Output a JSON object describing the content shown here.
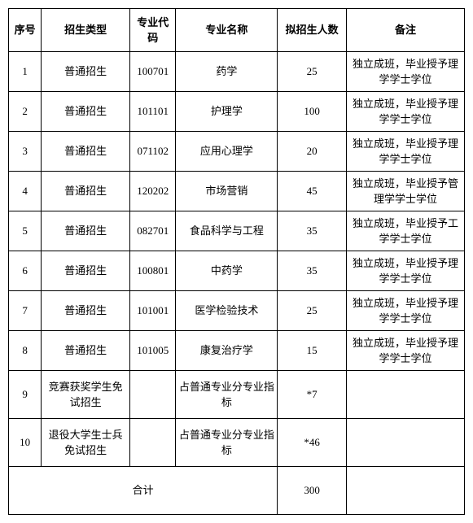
{
  "headers": {
    "seq": "序号",
    "type": "招生类型",
    "code": "专业代码",
    "name": "专业名称",
    "count": "拟招生人数",
    "note": "备注"
  },
  "rows": [
    {
      "seq": "1",
      "type": "普通招生",
      "code": "100701",
      "name": "药学",
      "count": "25",
      "note": "独立成班，毕业授予理学学士学位"
    },
    {
      "seq": "2",
      "type": "普通招生",
      "code": "101101",
      "name": "护理学",
      "count": "100",
      "note": "独立成班，毕业授予理学学士学位"
    },
    {
      "seq": "3",
      "type": "普通招生",
      "code": "071102",
      "name": "应用心理学",
      "count": "20",
      "note": "独立成班，毕业授予理学学士学位"
    },
    {
      "seq": "4",
      "type": "普通招生",
      "code": "120202",
      "name": "市场营销",
      "count": "45",
      "note": "独立成班，毕业授予管理学学士学位"
    },
    {
      "seq": "5",
      "type": "普通招生",
      "code": "082701",
      "name": "食品科学与工程",
      "count": "35",
      "note": "独立成班，毕业授予工学学士学位"
    },
    {
      "seq": "6",
      "type": "普通招生",
      "code": "100801",
      "name": "中药学",
      "count": "35",
      "note": "独立成班，毕业授予理学学士学位"
    },
    {
      "seq": "7",
      "type": "普通招生",
      "code": "101001",
      "name": "医学检验技术",
      "count": "25",
      "note": "独立成班，毕业授予理学学士学位"
    },
    {
      "seq": "8",
      "type": "普通招生",
      "code": "101005",
      "name": "康复治疗学",
      "count": "15",
      "note": "独立成班，毕业授予理学学士学位"
    },
    {
      "seq": "9",
      "type": "竞赛获奖学生免试招生",
      "code": "",
      "name": "占普通专业分专业指标",
      "count": "*7",
      "note": ""
    },
    {
      "seq": "10",
      "type": "退役大学生士兵免试招生",
      "code": "",
      "name": "占普通专业分专业指标",
      "count": "*46",
      "note": ""
    }
  ],
  "total": {
    "label": "合计",
    "count": "300",
    "note": ""
  }
}
